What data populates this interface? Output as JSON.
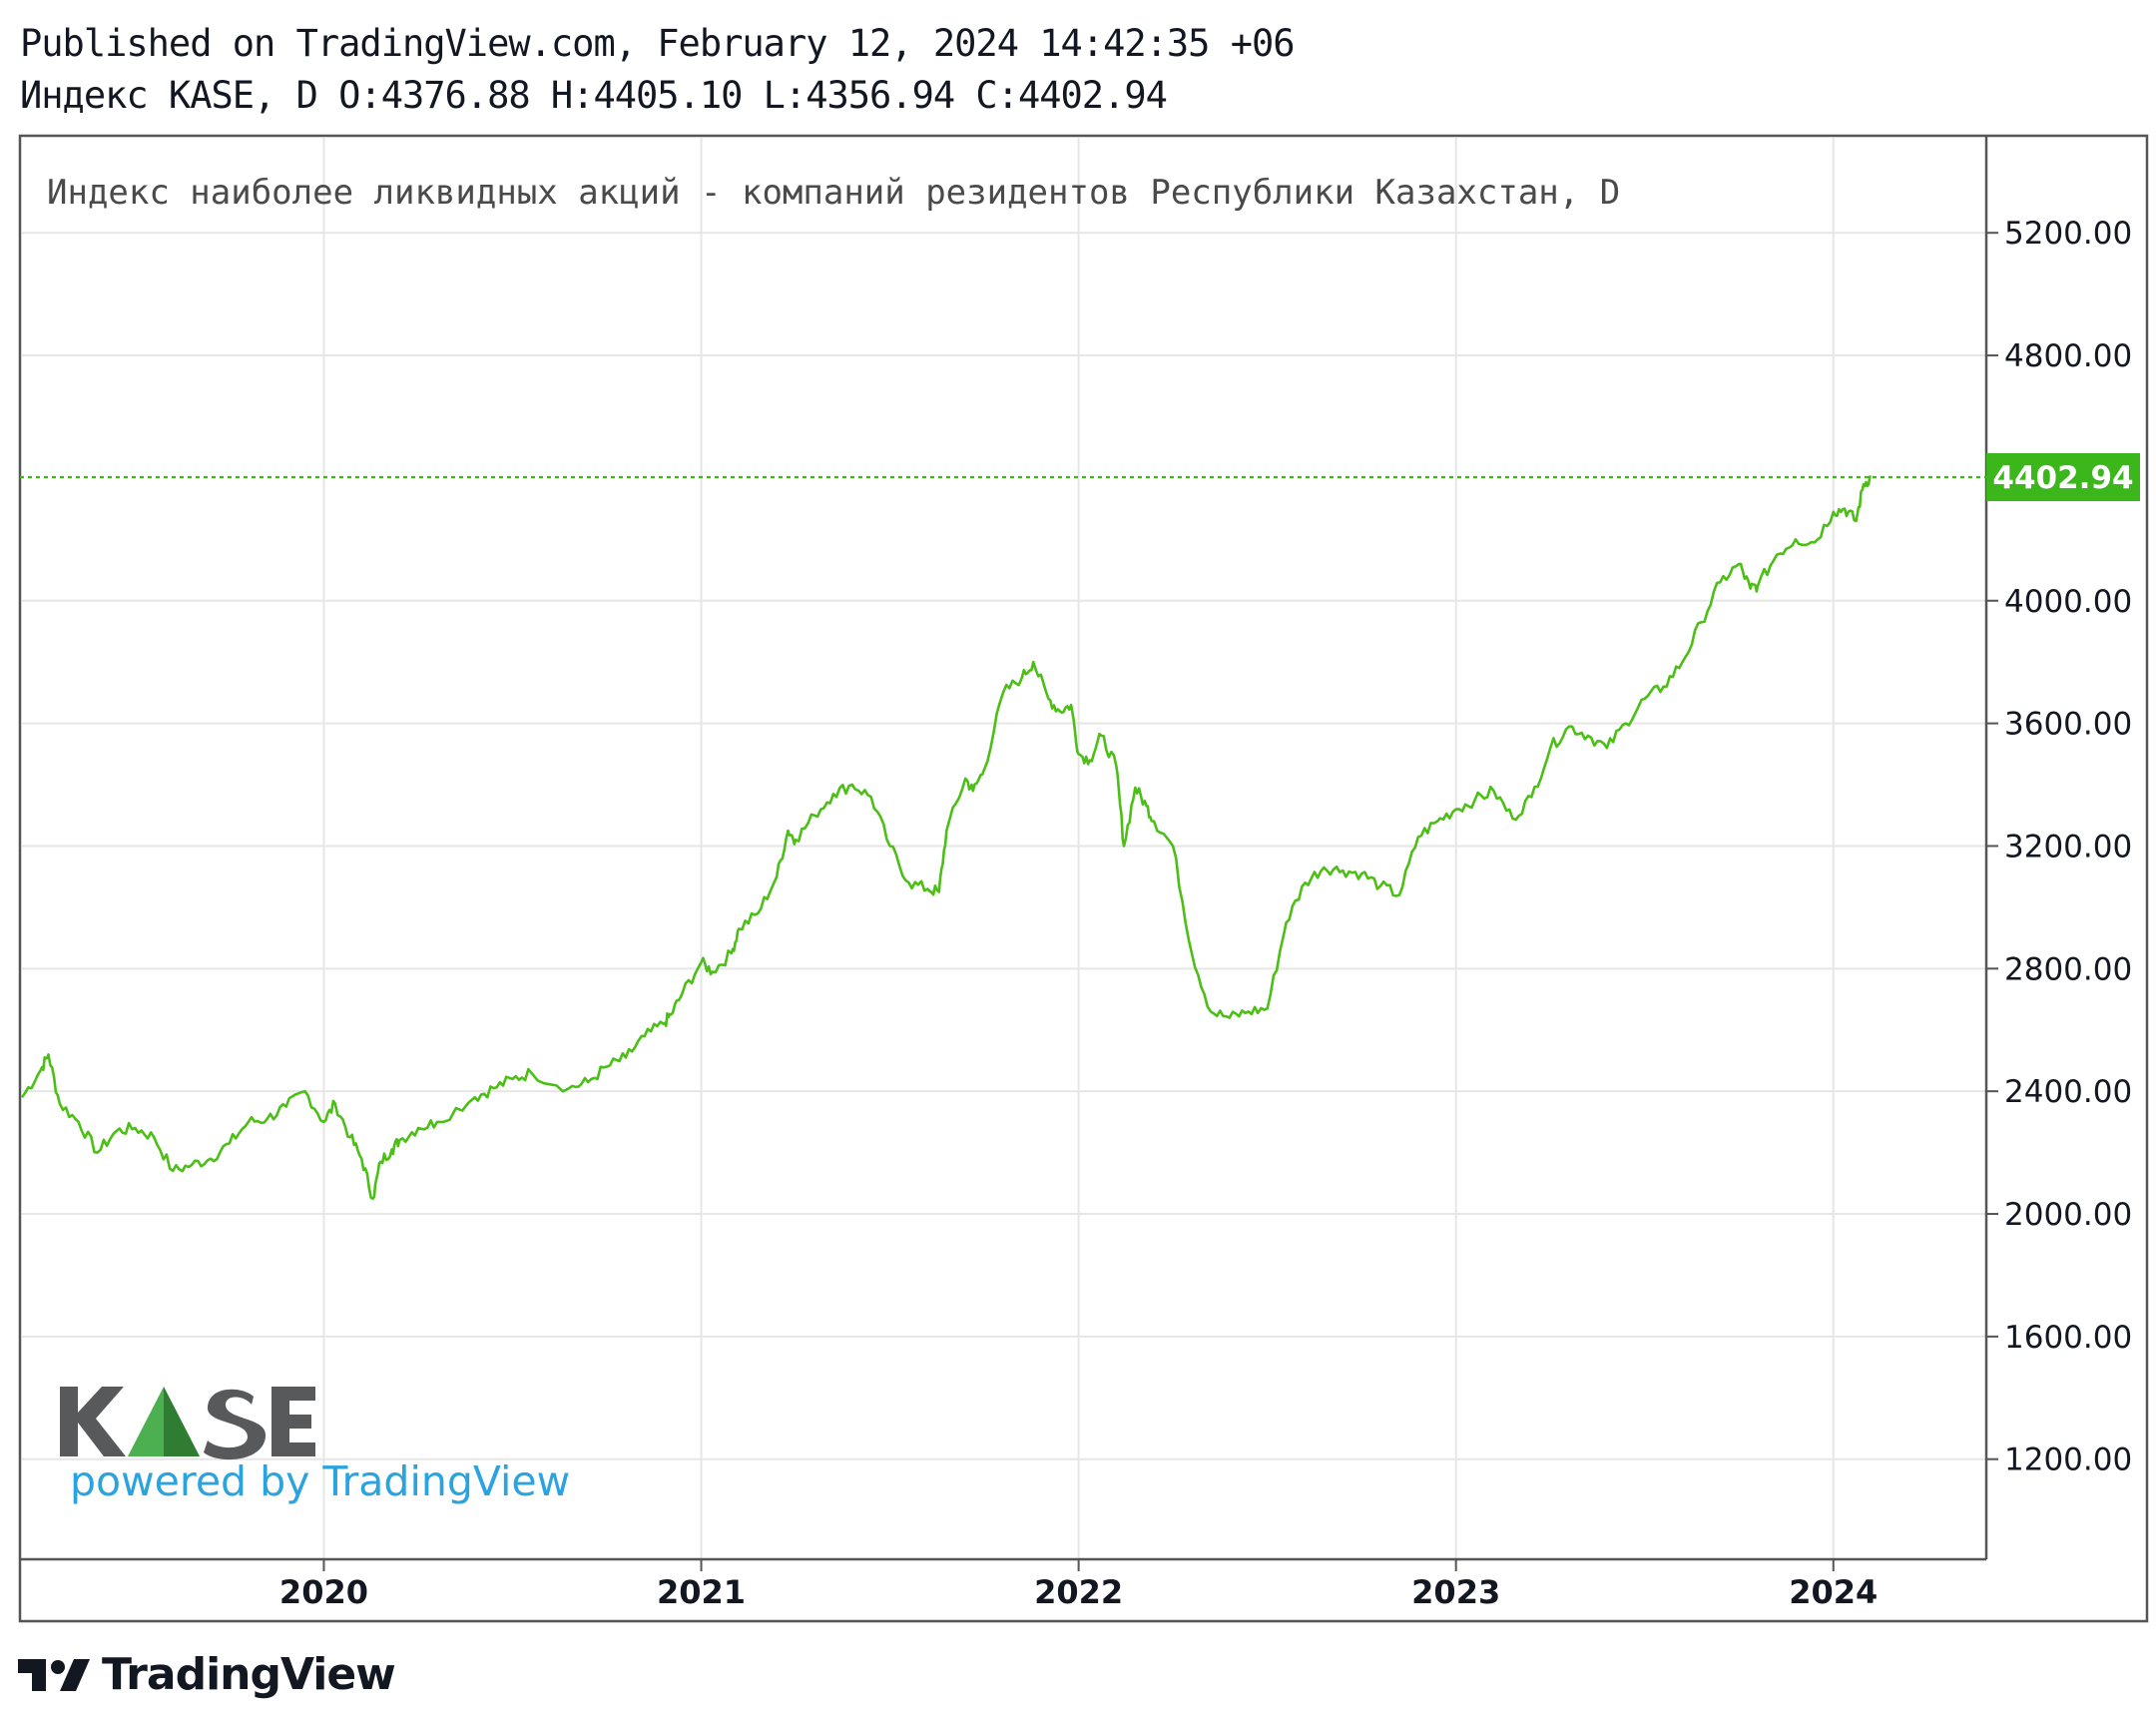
{
  "header": {
    "published": "Published on TradingView.com, February 12, 2024 14:42:35 +06",
    "ohlc": "Индекс KASE, D O:4376.88 H:4405.10 L:4356.94 C:4402.94"
  },
  "colors": {
    "line": "#4cbf16",
    "last_price_bg": "#3bb61b",
    "grid": "#e6e6e6",
    "border": "#555555",
    "kase_grey": "#58595b",
    "kase_green": "#4caf50",
    "powered_blue": "#2aa3df"
  },
  "watermark": {
    "logo_text": "KASE",
    "powered": "powered by TradingView"
  },
  "footer": {
    "brand": "TradingView",
    "icon": "tradingview-logo-icon"
  },
  "chart_data": {
    "type": "line",
    "title": "Индекс наиболее ликвидных акций - компаний резидентов Республики Казахстан, D",
    "last_price_label": "4402.94",
    "last_price": 4402.94,
    "ylim": [
      880,
      5510
    ],
    "y_ticks": [
      {
        "v": 5200,
        "label": "5200.00"
      },
      {
        "v": 4800,
        "label": "4800.00"
      },
      {
        "v": 4000,
        "label": "4000.00"
      },
      {
        "v": 3600,
        "label": "3600.00"
      },
      {
        "v": 3200,
        "label": "3200.00"
      },
      {
        "v": 2800,
        "label": "2800.00"
      },
      {
        "v": 2400,
        "label": "2400.00"
      },
      {
        "v": 2000,
        "label": "2000.00"
      },
      {
        "v": 1600,
        "label": "1600.00"
      },
      {
        "v": 1200,
        "label": "1200.00"
      }
    ],
    "xlim": [
      2019.2,
      2024.4
    ],
    "x_ticks": [
      {
        "v": 2020,
        "label": "2020"
      },
      {
        "v": 2021,
        "label": "2021"
      },
      {
        "v": 2022,
        "label": "2022"
      },
      {
        "v": 2023,
        "label": "2023"
      },
      {
        "v": 2024,
        "label": "2024"
      }
    ],
    "grid": true,
    "series": [
      {
        "x": [
          2019.2,
          2019.25,
          2019.27,
          2019.3,
          2019.35,
          2019.4,
          2019.45,
          2019.5,
          2019.55,
          2019.6,
          2019.65,
          2019.7,
          2019.75,
          2019.8,
          2019.85,
          2019.9,
          2019.95,
          2020.0,
          2020.03,
          2020.07,
          2020.1,
          2020.13,
          2020.15,
          2020.18,
          2020.2,
          2020.25,
          2020.3,
          2020.4,
          2020.45,
          2020.5,
          2020.55,
          2020.65,
          2020.7,
          2020.75,
          2020.8,
          2020.85,
          2020.9,
          2020.92,
          2020.95,
          2021.0,
          2021.03,
          2021.08,
          2021.1,
          2021.15,
          2021.2,
          2021.23,
          2021.25,
          2021.3,
          2021.35,
          2021.4,
          2021.45,
          2021.5,
          2021.55,
          2021.6,
          2021.63,
          2021.65,
          2021.7,
          2021.72,
          2021.75,
          2021.8,
          2021.85,
          2021.88,
          2021.92,
          2021.95,
          2021.98,
          2022.0,
          2022.03,
          2022.06,
          2022.1,
          2022.12,
          2022.15,
          2022.18,
          2022.2,
          2022.25,
          2022.3,
          2022.35,
          2022.4,
          2022.45,
          2022.5,
          2022.55,
          2022.6,
          2022.65,
          2022.7,
          2022.75,
          2022.8,
          2022.85,
          2022.9,
          2022.95,
          2023.0,
          2023.05,
          2023.1,
          2023.15,
          2023.2,
          2023.25,
          2023.3,
          2023.35,
          2023.4,
          2023.45,
          2023.5,
          2023.55,
          2023.6,
          2023.65,
          2023.7,
          2023.75,
          2023.78,
          2023.8,
          2023.85,
          2023.9,
          2023.95,
          2024.0,
          2024.03,
          2024.06,
          2024.08,
          2024.1
        ],
        "y": [
          2380,
          2470,
          2520,
          2360,
          2300,
          2200,
          2270,
          2280,
          2250,
          2140,
          2160,
          2180,
          2230,
          2300,
          2310,
          2350,
          2400,
          2300,
          2360,
          2250,
          2180,
          2050,
          2170,
          2210,
          2240,
          2280,
          2300,
          2380,
          2410,
          2440,
          2460,
          2410,
          2430,
          2480,
          2510,
          2580,
          2620,
          2650,
          2720,
          2820,
          2790,
          2850,
          2930,
          2980,
          3100,
          3250,
          3220,
          3300,
          3370,
          3400,
          3360,
          3200,
          3080,
          3060,
          3050,
          3250,
          3420,
          3380,
          3450,
          3700,
          3750,
          3800,
          3680,
          3640,
          3660,
          3500,
          3480,
          3560,
          3460,
          3200,
          3390,
          3330,
          3280,
          3200,
          2850,
          2660,
          2640,
          2660,
          2670,
          2950,
          3080,
          3130,
          3120,
          3110,
          3070,
          3040,
          3230,
          3280,
          3320,
          3350,
          3380,
          3290,
          3360,
          3520,
          3590,
          3560,
          3520,
          3600,
          3680,
          3720,
          3800,
          3930,
          4060,
          4120,
          4040,
          4050,
          4150,
          4200,
          4190,
          4290,
          4300,
          4260,
          4380,
          4402.94
        ]
      }
    ]
  }
}
